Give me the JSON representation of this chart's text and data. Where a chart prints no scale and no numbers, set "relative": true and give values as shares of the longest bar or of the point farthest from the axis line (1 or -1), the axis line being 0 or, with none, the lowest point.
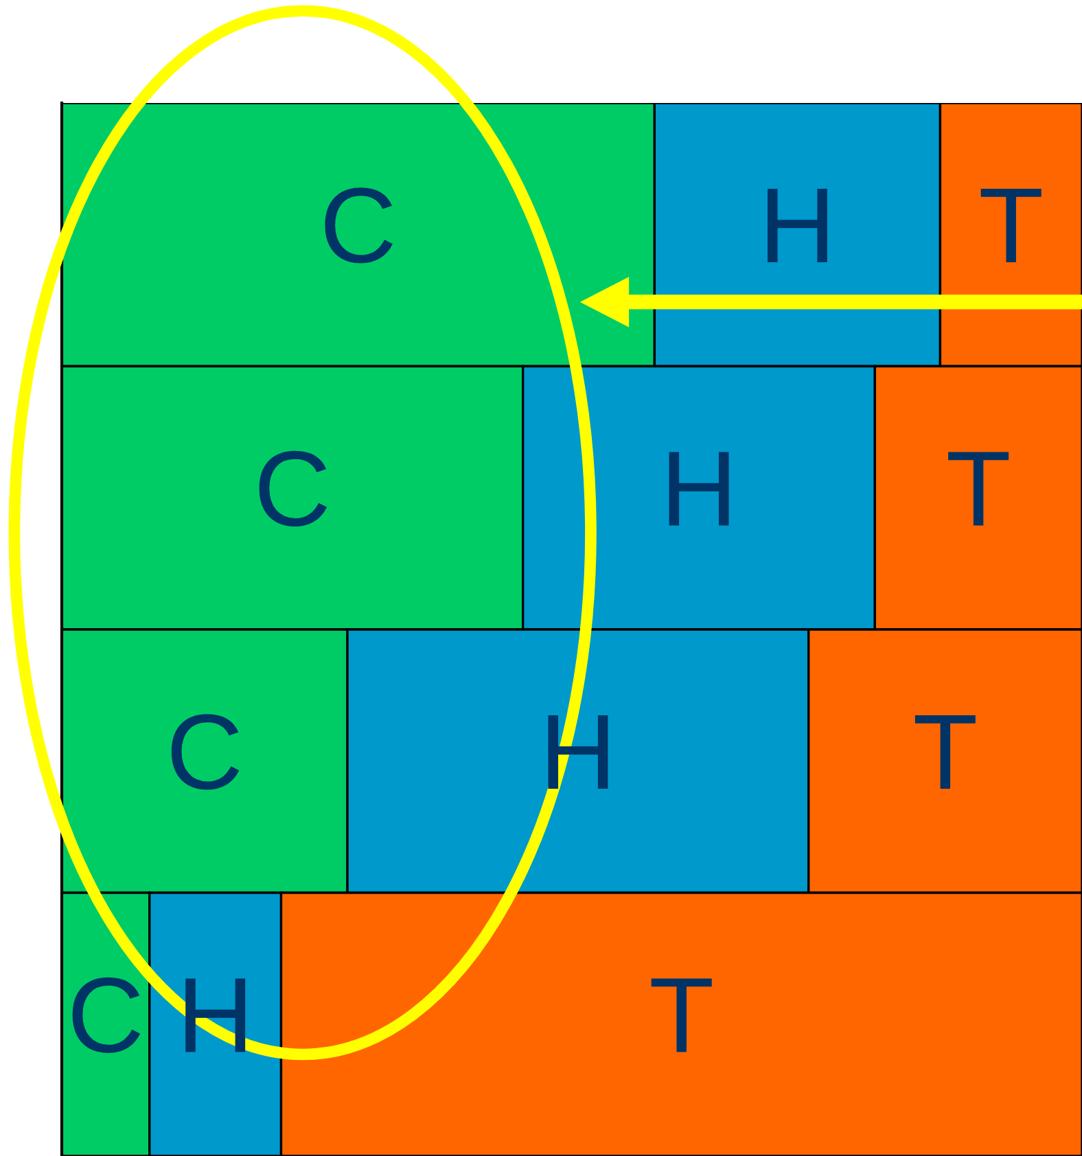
{
  "chart_data": {
    "type": "bar",
    "orientation": "horizontal",
    "stacked": true,
    "relative": true,
    "categories": [
      null,
      null,
      null,
      null
    ],
    "series": [
      {
        "name": "C",
        "color": "#00cc66",
        "values": [
          0.581,
          0.452,
          0.28,
          0.086
        ]
      },
      {
        "name": "H",
        "color": "#0099cc",
        "values": [
          0.28,
          0.345,
          0.452,
          0.129
        ]
      },
      {
        "name": "T",
        "color": "#ff6600",
        "values": [
          0.139,
          0.203,
          0.268,
          0.785
        ]
      }
    ]
  }
}
